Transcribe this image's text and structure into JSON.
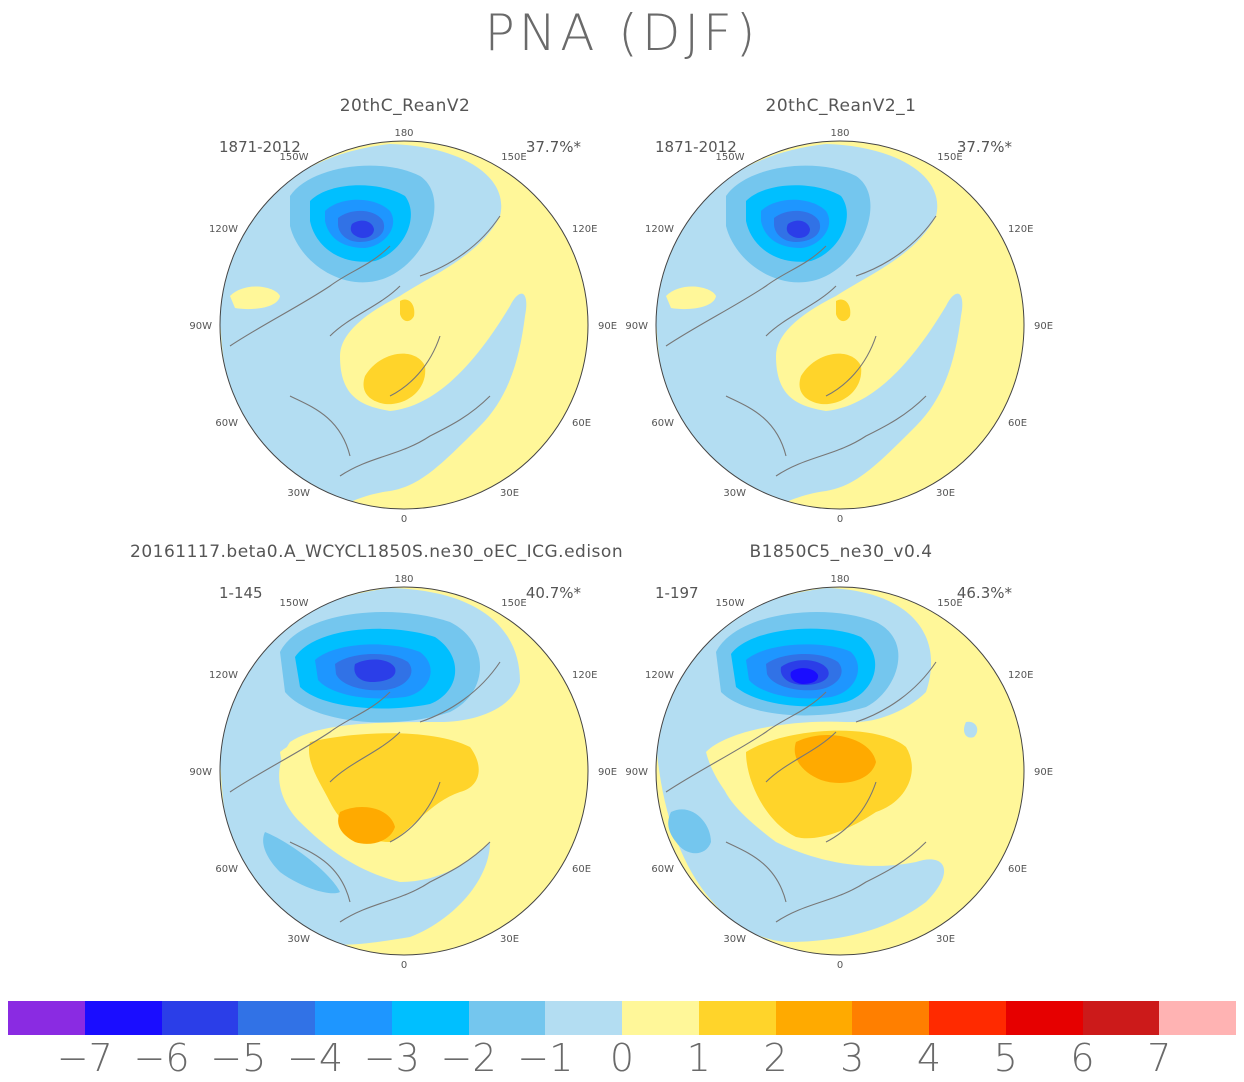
{
  "title": "PNA (DJF)",
  "panels": [
    {
      "title": "20thC_ReanV2",
      "years": "1871-2012",
      "percent": "37.7%*"
    },
    {
      "title": "20thC_ReanV2_1",
      "years": "1871-2012",
      "percent": "37.7%*"
    },
    {
      "title": "20161117.beta0.A_WCYCL1850S.ne30_oEC_ICG.edison",
      "years": "1-145",
      "percent": "40.7%*"
    },
    {
      "title": "B1850C5_ne30_v0.4",
      "years": "1-197",
      "percent": "46.3%*"
    }
  ],
  "longitude_labels": [
    "180",
    "150E",
    "120E",
    "90E",
    "60E",
    "30E",
    "0",
    "30W",
    "60W",
    "90W",
    "120W",
    "150W"
  ],
  "colorbar": {
    "colors": [
      "#8a2be2",
      "#1a0dff",
      "#2b3ee8",
      "#3172e6",
      "#1e96ff",
      "#00bfff",
      "#74c6ee",
      "#b3ddf2",
      "#fff799",
      "#ffd42a",
      "#ffaa00",
      "#ff7f00",
      "#ff2a00",
      "#e60000",
      "#cc1a1a",
      "#ffb3b3"
    ],
    "ticks": [
      "-7",
      "-6",
      "-5",
      "-4",
      "-3",
      "-2",
      "-1",
      "0",
      "1",
      "2",
      "3",
      "4",
      "5",
      "6",
      "7"
    ]
  }
}
